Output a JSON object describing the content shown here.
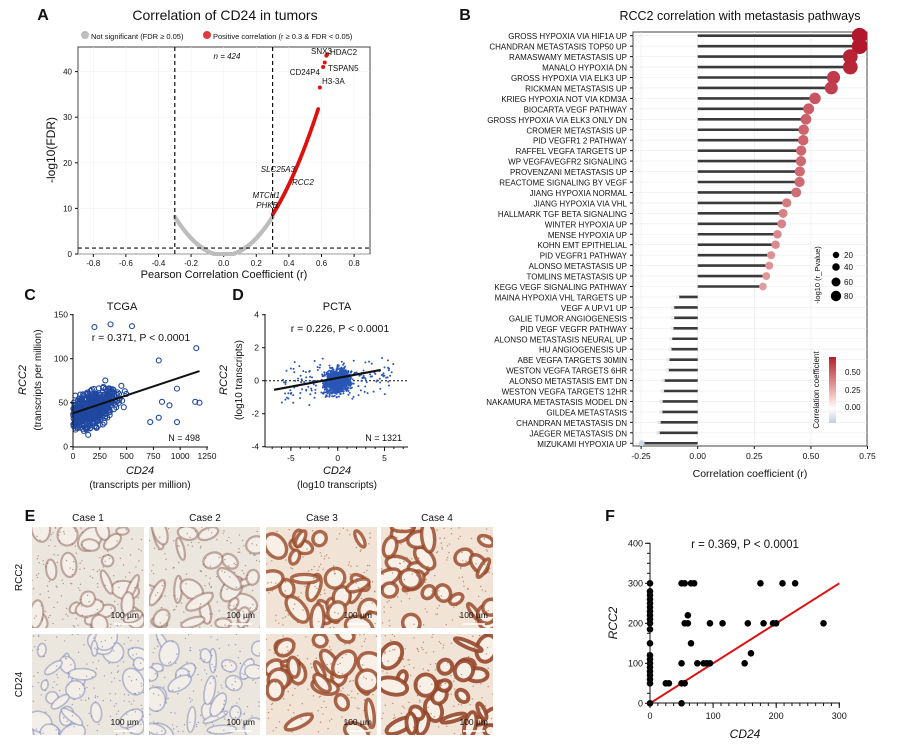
{
  "panels": {
    "A": "A",
    "B": "B",
    "C": "C",
    "D": "D",
    "E": "E",
    "F": "F"
  },
  "chart_data": [
    {
      "id": "A",
      "type": "scatter",
      "title": "Correlation of CD24 in tumors",
      "xlabel": "Pearson Correlation Coefficient (r)",
      "ylabel": "-log10(FDR)",
      "xlim": [
        -0.9,
        0.9
      ],
      "ylim": [
        0,
        45
      ],
      "xticks": [
        "-0.8",
        "-0.6",
        "-0.4",
        "-0.2",
        "0.0",
        "0.2",
        "0.4",
        "0.6",
        "0.8"
      ],
      "yticks": [
        "0",
        "10",
        "20",
        "30",
        "40"
      ],
      "legend": [
        {
          "label": "Not significant (FDR ≥ 0.05)",
          "color": "#bdbdbd"
        },
        {
          "label": "Positive correlation (r ≥ 0.3 & FDR < 0.05)",
          "color": "#e0393a"
        }
      ],
      "annotation": "n = 424",
      "thresholds": {
        "r": [
          -0.3,
          0.3
        ],
        "neg_log10_fdr": 1.3
      },
      "labeled_genes": [
        {
          "name": "SNX3",
          "r": 0.63,
          "y": 43.5
        },
        {
          "name": "HDAC2",
          "r": 0.635,
          "y": 43.8
        },
        {
          "name": "TSPAN5",
          "r": 0.62,
          "y": 42
        },
        {
          "name": "CD24P4",
          "r": 0.61,
          "y": 41
        },
        {
          "name": "H3-3A",
          "r": 0.59,
          "y": 36.5
        },
        {
          "name": "SLC25A3",
          "r": 0.39,
          "y": 19
        },
        {
          "name": "RCC2",
          "r": 0.4,
          "y": 16
        },
        {
          "name": "MTCH1",
          "r": 0.35,
          "y": 12.5
        },
        {
          "name": "PHKB",
          "r": 0.33,
          "y": 10.5
        }
      ]
    },
    {
      "id": "B",
      "type": "lollipop",
      "title": "RCC2 correlation with metastasis pathways",
      "xlabel": "Correlation coefficient (r)",
      "xlim": [
        -0.28,
        0.75
      ],
      "xticks": [
        "-0.25",
        "0.00",
        "0.25",
        "0.50",
        "0.75"
      ],
      "size_legend": {
        "title": "-log10 (r_Pvalue)",
        "values": [
          "20",
          "40",
          "60",
          "80"
        ]
      },
      "color_legend": {
        "title": "Correlation  coefficient",
        "ticks": [
          "0.50",
          "0.25",
          "0.00"
        ],
        "low": "#c5cedd",
        "mid": "#ffffff",
        "high": "#b2202a"
      },
      "categories": [
        "GROSS HYPOXIA VIA HIF1A UP",
        "CHANDRAN METASTASIS TOP50 UP",
        "RAMASWAMY METASTASIS UP",
        "MANALO HYPOXIA DN",
        "GROSS HYPOXIA VIA ELK3 UP",
        "RICKMAN METASTASIS UP",
        "KRIEG HYPOXIA NOT VIA KDM3A",
        "BIOCARTA VEGF PATHWAY",
        "GROSS HYPOXIA VIA ELK3 ONLY DN",
        "CROMER METASTASIS UP",
        "PID VEGFR1 2 PATHWAY",
        "RAFFEL VEGFA TARGETS UP",
        "WP VEGFAVEGFR2 SIGNALING",
        "PROVENZANI METASTASIS UP",
        "REACTOME SIGNALING BY VEGF",
        "JIANG HYPOXIA NORMAL",
        "JIANG HYPOXIA VIA VHL",
        "HALLMARK TGF BETA SIGNALING",
        "WINTER HYPOXIA UP",
        "MENSE HYPOXIA UP",
        "KOHN EMT EPITHELIAL",
        "PID VEGFR1 PATHWAY",
        "ALONSO METASTASIS UP",
        "TOMLINS METASTASIS UP",
        "KEGG VEGF SIGNALING PATHWAY",
        "MAINA HYPOXIA VHL TARGETS UP",
        "VEGF A UP.V1 UP",
        "GALIE TUMOR ANGIOGENESIS",
        "PID VEGF VEGFR PATHWAY",
        "ALONSO METASTASIS NEURAL UP",
        "HU ANGIOGENESIS UP",
        "ABE VEGFA TARGETS 30MIN",
        "WESTON VEGFA TARGETS 6HR",
        "ALONSO METASTASIS EMT DN",
        "WESTON VEGFA TARGETS 12HR",
        "NAKAMURA METASTASIS MODEL DN",
        "GILDEA METASTASIS",
        "CHANDRAN METASTASIS DN",
        "JAEGER METASTASIS DN",
        "MIZUKAMI HYPOXIA UP"
      ],
      "values": [
        0.715,
        0.715,
        0.674,
        0.674,
        0.6,
        0.59,
        0.518,
        0.49,
        0.478,
        0.468,
        0.466,
        0.457,
        0.456,
        0.451,
        0.45,
        0.435,
        0.393,
        0.377,
        0.371,
        0.352,
        0.344,
        0.324,
        0.316,
        0.303,
        0.288,
        -0.089,
        -0.111,
        -0.111,
        -0.114,
        -0.12,
        -0.123,
        -0.132,
        -0.135,
        -0.153,
        -0.156,
        -0.162,
        -0.163,
        -0.171,
        -0.175,
        -0.248
      ]
    },
    {
      "id": "C",
      "type": "scatter",
      "title": "TCGA",
      "xlabel": "CD24",
      "xlabel2": "(transcripts per million)",
      "ylabel": "RCC2",
      "ylabel2": "(transcripts per million)",
      "xlim": [
        0,
        1250
      ],
      "ylim": [
        0,
        150
      ],
      "xticks": [
        "0",
        "250",
        "500",
        "750",
        "1000",
        "1250"
      ],
      "yticks": [
        "0",
        "50",
        "100",
        "150"
      ],
      "stat": "r = 0.371, P < 0.0001",
      "n_label": "N = 498",
      "fit": {
        "x": [
          0,
          1180
        ],
        "y": [
          38,
          86
        ]
      },
      "outliers": [
        [
          200,
          136
        ],
        [
          350,
          139
        ],
        [
          550,
          137
        ],
        [
          1150,
          112
        ],
        [
          1140,
          51
        ],
        [
          1180,
          50
        ],
        [
          970,
          28
        ],
        [
          970,
          66
        ],
        [
          800,
          98
        ],
        [
          720,
          28
        ],
        [
          800,
          33
        ],
        [
          900,
          47
        ],
        [
          830,
          51
        ]
      ],
      "color": "#2048a0"
    },
    {
      "id": "D",
      "type": "scatter",
      "title": "PCTA",
      "xlabel": "CD24",
      "xlabel2": "(log10 transcripts)",
      "ylabel": "RCC2",
      "ylabel2": "(log10 transcripts)",
      "xlim": [
        -7.8,
        7.5
      ],
      "ylim": [
        -4,
        4
      ],
      "xticks": [
        "-5",
        "0",
        "5"
      ],
      "yticks": [
        "-4",
        "-2",
        "0",
        "2",
        "4"
      ],
      "stat": "r = 0.226, P < 0.0001",
      "n_label": "N = 1321",
      "fit": {
        "x": [
          -6.8,
          4.6
        ],
        "y": [
          -0.55,
          0.65
        ]
      },
      "color": "#2a56b8"
    },
    {
      "id": "F",
      "type": "scatter",
      "xlabel": "CD24",
      "ylabel": "RCC2",
      "xlim": [
        0,
        300
      ],
      "ylim": [
        0,
        400
      ],
      "xticks": [
        "0",
        "100",
        "200",
        "300"
      ],
      "yticks": [
        "0",
        "100",
        "200",
        "300",
        "400"
      ],
      "stat": "r = 0.369, P < 0.0001",
      "fit": {
        "x": [
          0,
          300
        ],
        "y": [
          0,
          300
        ],
        "color": "#e01010"
      },
      "points": [
        [
          0,
          0
        ],
        [
          0,
          50
        ],
        [
          0,
          60
        ],
        [
          0,
          70
        ],
        [
          0,
          80
        ],
        [
          0,
          90
        ],
        [
          0,
          100
        ],
        [
          0,
          110
        ],
        [
          0,
          120
        ],
        [
          0,
          150
        ],
        [
          0,
          185
        ],
        [
          0,
          200
        ],
        [
          0,
          210
        ],
        [
          0,
          220
        ],
        [
          0,
          230
        ],
        [
          0,
          240
        ],
        [
          0,
          250
        ],
        [
          0,
          260
        ],
        [
          0,
          270
        ],
        [
          0,
          280
        ],
        [
          0,
          300
        ],
        [
          25,
          50
        ],
        [
          30,
          50
        ],
        [
          50,
          100
        ],
        [
          50,
          50
        ],
        [
          50,
          0
        ],
        [
          55,
          50
        ],
        [
          50,
          300
        ],
        [
          55,
          300
        ],
        [
          55,
          200
        ],
        [
          60,
          200
        ],
        [
          60,
          220
        ],
        [
          65,
          150
        ],
        [
          65,
          300
        ],
        [
          70,
          300
        ],
        [
          75,
          100
        ],
        [
          85,
          100
        ],
        [
          90,
          100
        ],
        [
          95,
          100
        ],
        [
          95,
          200
        ],
        [
          115,
          200
        ],
        [
          150,
          100
        ],
        [
          155,
          200
        ],
        [
          160,
          125
        ],
        [
          175,
          300
        ],
        [
          180,
          200
        ],
        [
          195,
          200
        ],
        [
          200,
          200
        ],
        [
          210,
          300
        ],
        [
          230,
          300
        ],
        [
          275,
          200
        ]
      ]
    }
  ],
  "ihc": {
    "columns": [
      "Case 1",
      "Case 2",
      "Case 3",
      "Case 4"
    ],
    "rows": [
      "RCC2",
      "CD24"
    ],
    "scale_bar": "100 µm",
    "staining": [
      [
        0.25,
        0.3,
        0.75,
        0.8
      ],
      [
        0.05,
        0.05,
        0.8,
        0.95
      ]
    ]
  }
}
